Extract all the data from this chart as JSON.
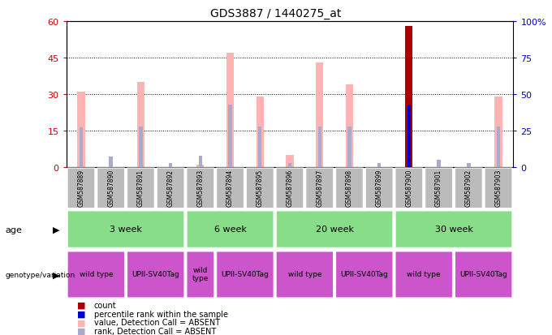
{
  "title": "GDS3887 / 1440275_at",
  "samples": [
    "GSM587889",
    "GSM587890",
    "GSM587891",
    "GSM587892",
    "GSM587893",
    "GSM587894",
    "GSM587895",
    "GSM587896",
    "GSM587897",
    "GSM587898",
    "GSM587899",
    "GSM587900",
    "GSM587901",
    "GSM587902",
    "GSM587903"
  ],
  "value_bars": [
    31,
    0,
    35,
    0,
    1,
    47,
    29,
    5,
    43,
    34,
    0,
    58,
    0,
    0,
    29
  ],
  "rank_bars_pct": [
    27,
    7,
    28,
    3,
    8,
    43,
    28,
    3,
    28,
    28,
    3,
    43,
    5,
    3,
    28
  ],
  "is_present": [
    false,
    false,
    false,
    false,
    false,
    false,
    false,
    false,
    false,
    false,
    false,
    true,
    false,
    false,
    false
  ],
  "ylim": [
    0,
    60
  ],
  "y2lim": [
    0,
    100
  ],
  "yticks": [
    0,
    15,
    30,
    45,
    60
  ],
  "y2ticks": [
    0,
    25,
    50,
    75,
    100
  ],
  "y2ticklabels": [
    "0",
    "25",
    "50",
    "75",
    "100%"
  ],
  "ytick_color": "#cc0000",
  "y2tick_color": "#0000cc",
  "color_value_absent": "#ffb3b3",
  "color_rank_absent": "#aaaacc",
  "color_value_present": "#aa0000",
  "color_rank_present": "#0000cc",
  "age_groups": [
    {
      "label": "3 week",
      "start": 0,
      "end": 4
    },
    {
      "label": "6 week",
      "start": 4,
      "end": 7
    },
    {
      "label": "20 week",
      "start": 7,
      "end": 11
    },
    {
      "label": "30 week",
      "start": 11,
      "end": 15
    }
  ],
  "genotype_groups": [
    {
      "label": "wild type",
      "start": 0,
      "end": 2
    },
    {
      "label": "UPII-SV40Tag",
      "start": 2,
      "end": 4
    },
    {
      "label": "wild\ntype",
      "start": 4,
      "end": 5
    },
    {
      "label": "UPII-SV40Tag",
      "start": 5,
      "end": 7
    },
    {
      "label": "wild type",
      "start": 7,
      "end": 9
    },
    {
      "label": "UPII-SV40Tag",
      "start": 9,
      "end": 11
    },
    {
      "label": "wild type",
      "start": 11,
      "end": 13
    },
    {
      "label": "UPII-SV40Tag",
      "start": 13,
      "end": 15
    }
  ],
  "age_color": "#88dd88",
  "geno_color": "#cc55cc",
  "sample_box_color": "#bbbbbb",
  "legend_items": [
    {
      "label": "count",
      "color": "#aa0000"
    },
    {
      "label": "percentile rank within the sample",
      "color": "#0000cc"
    },
    {
      "label": "value, Detection Call = ABSENT",
      "color": "#ffb3b3"
    },
    {
      "label": "rank, Detection Call = ABSENT",
      "color": "#aaaacc"
    }
  ]
}
